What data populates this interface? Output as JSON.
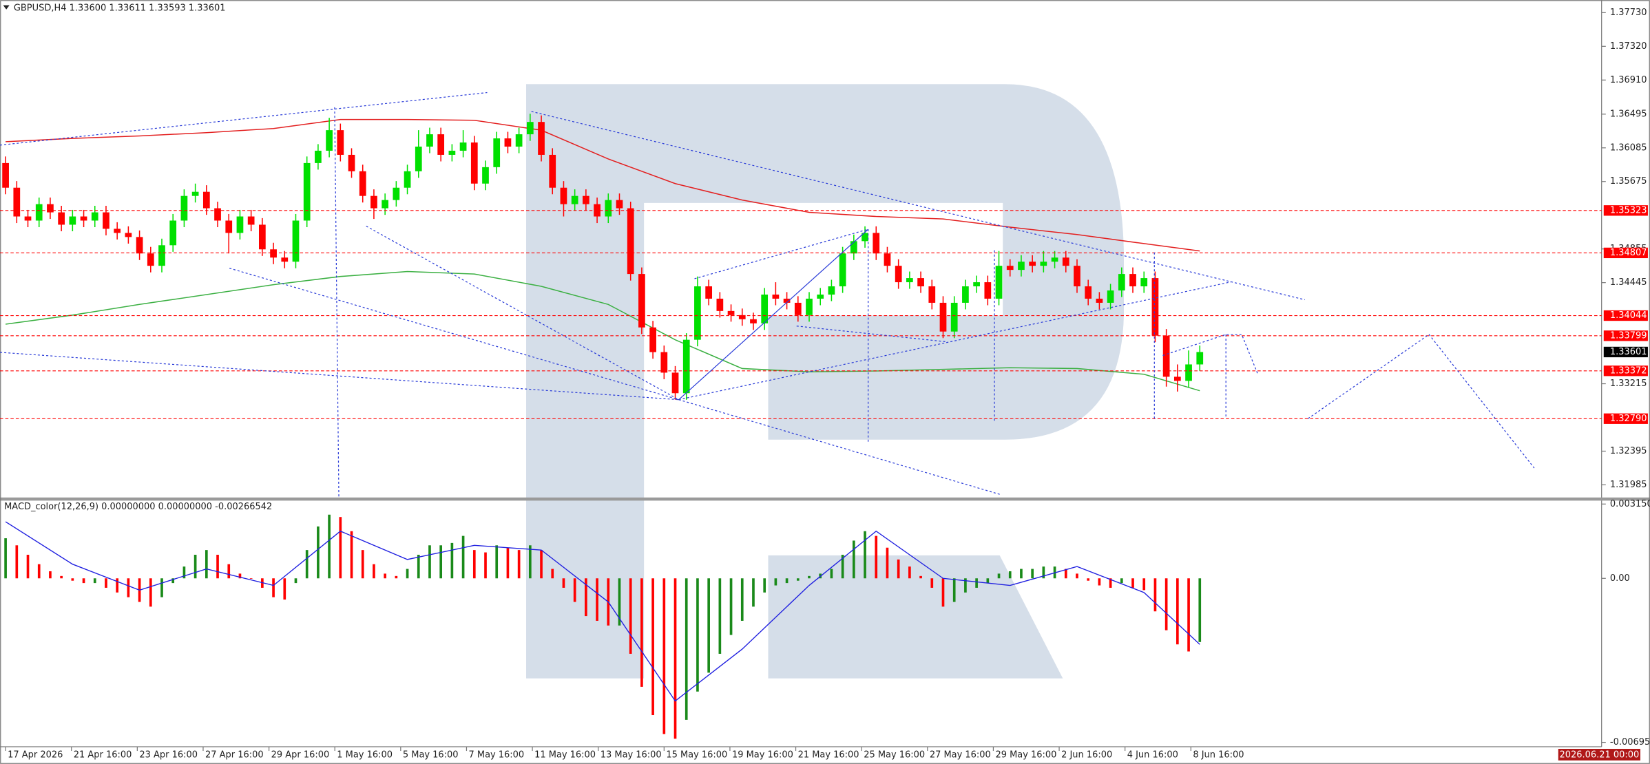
{
  "chart_data": [
    {
      "type": "candlestick",
      "title": "GBPUSD,H4  1.33600 1.33611 1.33593 1.33601",
      "xlim": [
        -0.5,
        143
      ],
      "xticks": [
        {
          "value": 0,
          "label": "17 Apr 2026"
        },
        {
          "value": 5.9,
          "label": "21 Apr 16:00"
        },
        {
          "value": 11.8,
          "label": "23 Apr 16:00"
        },
        {
          "value": 17.7,
          "label": "27 Apr 16:00"
        },
        {
          "value": 23.6,
          "label": "29 Apr 16:00"
        },
        {
          "value": 29.5,
          "label": "1 May 16:00"
        },
        {
          "value": 35.4,
          "label": "5 May 16:00"
        },
        {
          "value": 41.3,
          "label": "7 May 16:00"
        },
        {
          "value": 47.2,
          "label": "11 May 16:00"
        },
        {
          "value": 53.1,
          "label": "13 May 16:00"
        },
        {
          "value": 59,
          "label": "15 May 16:00"
        },
        {
          "value": 64.9,
          "label": "19 May 16:00"
        },
        {
          "value": 70.8,
          "label": "21 May 16:00"
        },
        {
          "value": 76.7,
          "label": "25 May 16:00"
        },
        {
          "value": 82.6,
          "label": "27 May 16:00"
        },
        {
          "value": 88.5,
          "label": "29 May 16:00"
        },
        {
          "value": 94.4,
          "label": "2 Jun 16:00"
        },
        {
          "value": 100.3,
          "label": "4 Jun 16:00"
        },
        {
          "value": 106.2,
          "label": "8 Jun 16:00"
        }
      ],
      "cursor_time": {
        "value": 142.7,
        "label": "2026.06.21 00:00"
      },
      "ylim": [
        1.31844,
        1.37858
      ],
      "yticks": [
        {
          "value": 1.3773,
          "label": "1.37730"
        },
        {
          "value": 1.3732,
          "label": "1.37320"
        },
        {
          "value": 1.3691,
          "label": "1.36910"
        },
        1.36495,
        1.36085,
        1.35675,
        1.34855,
        1.34445,
        1.33215,
        1.32395,
        1.31985
      ],
      "levels": [
        1.35323,
        1.34807,
        1.34044,
        1.33799,
        1.33372,
        {
          "value": 1.3279,
          "label": "1.32790"
        }
      ],
      "level_color": "#ff0000",
      "last_price": 1.33601,
      "up_color": "#00e000",
      "down_color": "#ff0000",
      "open": [
        1.359,
        1.356,
        1.3525,
        1.352,
        1.354,
        1.353,
        1.3515,
        1.3525,
        1.352,
        1.353,
        1.351,
        1.3505,
        1.35,
        1.348,
        1.3465,
        1.349,
        1.352,
        1.355,
        1.3555,
        1.3535,
        1.352,
        1.3505,
        1.3525,
        1.3515,
        1.3485,
        1.3475,
        1.347,
        1.352,
        1.359,
        1.3605,
        1.363,
        1.36,
        1.358,
        1.355,
        1.3535,
        1.3545,
        1.356,
        1.358,
        1.361,
        1.3625,
        1.36,
        1.3605,
        1.3615,
        1.3565,
        1.3585,
        1.362,
        1.361,
        1.3625,
        1.364,
        1.36,
        1.356,
        1.354,
        1.355,
        1.354,
        1.3525,
        1.3545,
        1.3535,
        1.3455,
        1.339,
        1.336,
        1.3335,
        1.331,
        1.3375,
        1.344,
        1.3425,
        1.341,
        1.3405,
        1.34,
        1.3395,
        1.343,
        1.3425,
        1.342,
        1.3405,
        1.3425,
        1.343,
        1.344,
        1.348,
        1.3495,
        1.3505,
        1.348,
        1.3465,
        1.3445,
        1.345,
        1.344,
        1.342,
        1.3385,
        1.342,
        1.344,
        1.3445,
        1.3425,
        1.3465,
        1.346,
        1.347,
        1.3465,
        1.347,
        1.3475,
        1.3465,
        1.344,
        1.3425,
        1.342,
        1.3435,
        1.3455,
        1.344,
        1.345,
        1.338,
        1.333,
        1.3325,
        1.3345
      ],
      "high": [
        1.3598,
        1.3568,
        1.3533,
        1.3548,
        1.3548,
        1.3538,
        1.3533,
        1.3533,
        1.3538,
        1.3538,
        1.3518,
        1.3513,
        1.3508,
        1.3488,
        1.3498,
        1.3528,
        1.3558,
        1.3565,
        1.3563,
        1.3543,
        1.3528,
        1.3533,
        1.3533,
        1.3523,
        1.3493,
        1.3483,
        1.3528,
        1.3598,
        1.3613,
        1.3645,
        1.3638,
        1.3608,
        1.3588,
        1.3558,
        1.3553,
        1.3568,
        1.3588,
        1.363,
        1.3633,
        1.3633,
        1.3613,
        1.363,
        1.3623,
        1.3593,
        1.3628,
        1.3628,
        1.3633,
        1.365,
        1.3648,
        1.3608,
        1.3568,
        1.3558,
        1.3558,
        1.3548,
        1.3553,
        1.3553,
        1.3543,
        1.3463,
        1.3398,
        1.3368,
        1.3343,
        1.3383,
        1.3452,
        1.3448,
        1.3433,
        1.3418,
        1.3413,
        1.3408,
        1.3438,
        1.3445,
        1.3433,
        1.3428,
        1.3433,
        1.3438,
        1.3448,
        1.3488,
        1.3503,
        1.3513,
        1.3513,
        1.3488,
        1.3473,
        1.3458,
        1.3458,
        1.3448,
        1.3428,
        1.3428,
        1.3448,
        1.3453,
        1.3453,
        1.3483,
        1.3473,
        1.3478,
        1.3478,
        1.3483,
        1.3483,
        1.3483,
        1.3473,
        1.3448,
        1.3433,
        1.3443,
        1.3463,
        1.3463,
        1.3458,
        1.3458,
        1.3388,
        1.3345,
        1.3362,
        1.3368
      ],
      "low": [
        1.3552,
        1.3517,
        1.3512,
        1.3512,
        1.3522,
        1.3507,
        1.3507,
        1.3512,
        1.3512,
        1.3502,
        1.3497,
        1.3492,
        1.3472,
        1.3457,
        1.3457,
        1.3482,
        1.3512,
        1.3542,
        1.3527,
        1.3512,
        1.348,
        1.3497,
        1.3507,
        1.3477,
        1.3467,
        1.3462,
        1.3462,
        1.3512,
        1.3582,
        1.3597,
        1.3592,
        1.3572,
        1.3542,
        1.3522,
        1.3527,
        1.3537,
        1.3552,
        1.3572,
        1.3602,
        1.3592,
        1.3592,
        1.3597,
        1.3557,
        1.3557,
        1.3577,
        1.3602,
        1.3602,
        1.3617,
        1.3592,
        1.3552,
        1.3525,
        1.3532,
        1.3532,
        1.3517,
        1.3517,
        1.3527,
        1.3447,
        1.3382,
        1.3352,
        1.3327,
        1.3302,
        1.3302,
        1.3367,
        1.3417,
        1.3402,
        1.3397,
        1.3392,
        1.3387,
        1.3387,
        1.3417,
        1.3412,
        1.3397,
        1.3397,
        1.3417,
        1.3422,
        1.3432,
        1.3472,
        1.3487,
        1.3472,
        1.3457,
        1.3437,
        1.3437,
        1.3432,
        1.3412,
        1.3377,
        1.3377,
        1.3412,
        1.3432,
        1.3417,
        1.3417,
        1.3452,
        1.3452,
        1.3457,
        1.3457,
        1.3462,
        1.3457,
        1.3432,
        1.3417,
        1.3412,
        1.3412,
        1.3427,
        1.3432,
        1.3432,
        1.3372,
        1.3318,
        1.3312,
        1.3317,
        1.3337
      ],
      "close": [
        1.356,
        1.3525,
        1.352,
        1.354,
        1.353,
        1.3515,
        1.3525,
        1.352,
        1.353,
        1.351,
        1.3505,
        1.35,
        1.348,
        1.3465,
        1.349,
        1.352,
        1.355,
        1.3555,
        1.3535,
        1.352,
        1.3505,
        1.3525,
        1.3515,
        1.3485,
        1.3475,
        1.347,
        1.352,
        1.359,
        1.3605,
        1.363,
        1.36,
        1.358,
        1.355,
        1.3535,
        1.3545,
        1.356,
        1.358,
        1.361,
        1.3625,
        1.36,
        1.3605,
        1.3615,
        1.3565,
        1.3585,
        1.362,
        1.361,
        1.3625,
        1.364,
        1.36,
        1.356,
        1.354,
        1.355,
        1.354,
        1.3525,
        1.3545,
        1.3535,
        1.3455,
        1.339,
        1.336,
        1.3335,
        1.331,
        1.3375,
        1.344,
        1.3425,
        1.341,
        1.3405,
        1.34,
        1.3395,
        1.343,
        1.3425,
        1.342,
        1.3405,
        1.3425,
        1.343,
        1.344,
        1.348,
        1.3495,
        1.3505,
        1.348,
        1.3465,
        1.3445,
        1.345,
        1.344,
        1.342,
        1.3385,
        1.342,
        1.344,
        1.3445,
        1.3425,
        1.3465,
        1.346,
        1.347,
        1.3465,
        1.347,
        1.3475,
        1.3465,
        1.344,
        1.3425,
        1.342,
        1.3435,
        1.3455,
        1.344,
        1.345,
        1.338,
        1.333,
        1.3325,
        1.3345,
        1.33601
      ],
      "lines": [
        {
          "color": "#e32020",
          "x": [
            0,
            6,
            12,
            18,
            24,
            30,
            36,
            42,
            48,
            54,
            60,
            66,
            72,
            78,
            84,
            90,
            96,
            102,
            107
          ],
          "values": [
            1.3616,
            1.362,
            1.3623,
            1.3627,
            1.3632,
            1.3643,
            1.3643,
            1.3642,
            1.363,
            1.3595,
            1.3565,
            1.3545,
            1.353,
            1.3525,
            1.3522,
            1.3512,
            1.3503,
            1.3492,
            1.3483
          ]
        },
        {
          "color": "#3cb043",
          "x": [
            0,
            6,
            12,
            18,
            24,
            30,
            36,
            42,
            48,
            54,
            60,
            66,
            72,
            78,
            84,
            90,
            96,
            102,
            107
          ],
          "values": [
            1.3394,
            1.3405,
            1.3418,
            1.343,
            1.3442,
            1.3452,
            1.3458,
            1.3455,
            1.344,
            1.3418,
            1.3375,
            1.334,
            1.3336,
            1.3337,
            1.3339,
            1.3341,
            1.334,
            1.3333,
            1.3313
          ]
        }
      ]
    },
    {
      "type": "macd",
      "title": "MACD_color(12,26,9) 0.00000000 0.00000000 -0.00266542",
      "xlim": [
        -0.5,
        143
      ],
      "ylim": [
        -0.00714,
        0.00325
      ],
      "yticks": [
        0.0031506,
        {
          "value": 0,
          "label": "0.00"
        },
        {
          "value": -0.006955,
          "label": "-0.0069550"
        }
      ],
      "up_color": "#1a8a1a",
      "down_color": "#ff0000",
      "values": [
        0.0017,
        0.0014,
        0.001,
        0.0006,
        0.0003,
        0.0001,
        -0.0001,
        -0.0002,
        -0.0002,
        -0.0004,
        -0.0006,
        -0.0008,
        -0.001,
        -0.0012,
        -0.0008,
        -0.0002,
        0.0005,
        0.001,
        0.0012,
        0.001,
        0.0006,
        0.0002,
        0.0,
        -0.0004,
        -0.0008,
        -0.0009,
        -0.0002,
        0.0012,
        0.0022,
        0.0027,
        0.0026,
        0.002,
        0.0012,
        0.0006,
        0.0002,
        0.0001,
        0.0004,
        0.001,
        0.0014,
        0.0014,
        0.0015,
        0.0018,
        0.0012,
        0.0011,
        0.0014,
        0.0013,
        0.0012,
        0.0014,
        0.0012,
        0.0004,
        -0.0004,
        -0.001,
        -0.0016,
        -0.0018,
        -0.002,
        -0.002,
        -0.0032,
        -0.0046,
        -0.0058,
        -0.0066,
        -0.0068,
        -0.006,
        -0.0048,
        -0.004,
        -0.0032,
        -0.0024,
        -0.0018,
        -0.0012,
        -0.0006,
        -0.0003,
        -0.0002,
        -0.0001,
        0.0001,
        0.0002,
        0.0004,
        0.001,
        0.0016,
        0.002,
        0.0018,
        0.0013,
        0.0008,
        0.0005,
        0.0001,
        -0.0004,
        -0.0012,
        -0.001,
        -0.0006,
        -0.0004,
        -0.0002,
        0.0002,
        0.0003,
        0.0004,
        0.0004,
        0.0005,
        0.0005,
        0.0004,
        0.0002,
        -0.0001,
        -0.0003,
        -0.0004,
        -0.0002,
        -0.0004,
        -0.0005,
        -0.0014,
        -0.0022,
        -0.0028,
        -0.0031,
        -0.0027
      ],
      "signal": {
        "color": "#2020e0",
        "x": [
          0,
          6,
          12,
          18,
          24,
          30,
          36,
          42,
          48,
          54,
          60,
          66,
          72,
          78,
          84,
          90,
          96,
          102,
          107
        ],
        "values": [
          0.0024,
          0.0006,
          -0.0005,
          0.0004,
          -0.0003,
          0.002,
          0.0008,
          0.0014,
          0.0012,
          -0.001,
          -0.0052,
          -0.003,
          -0.0003,
          0.002,
          0.0,
          -0.0003,
          0.0005,
          -0.0006,
          -0.0028
        ]
      }
    }
  ]
}
